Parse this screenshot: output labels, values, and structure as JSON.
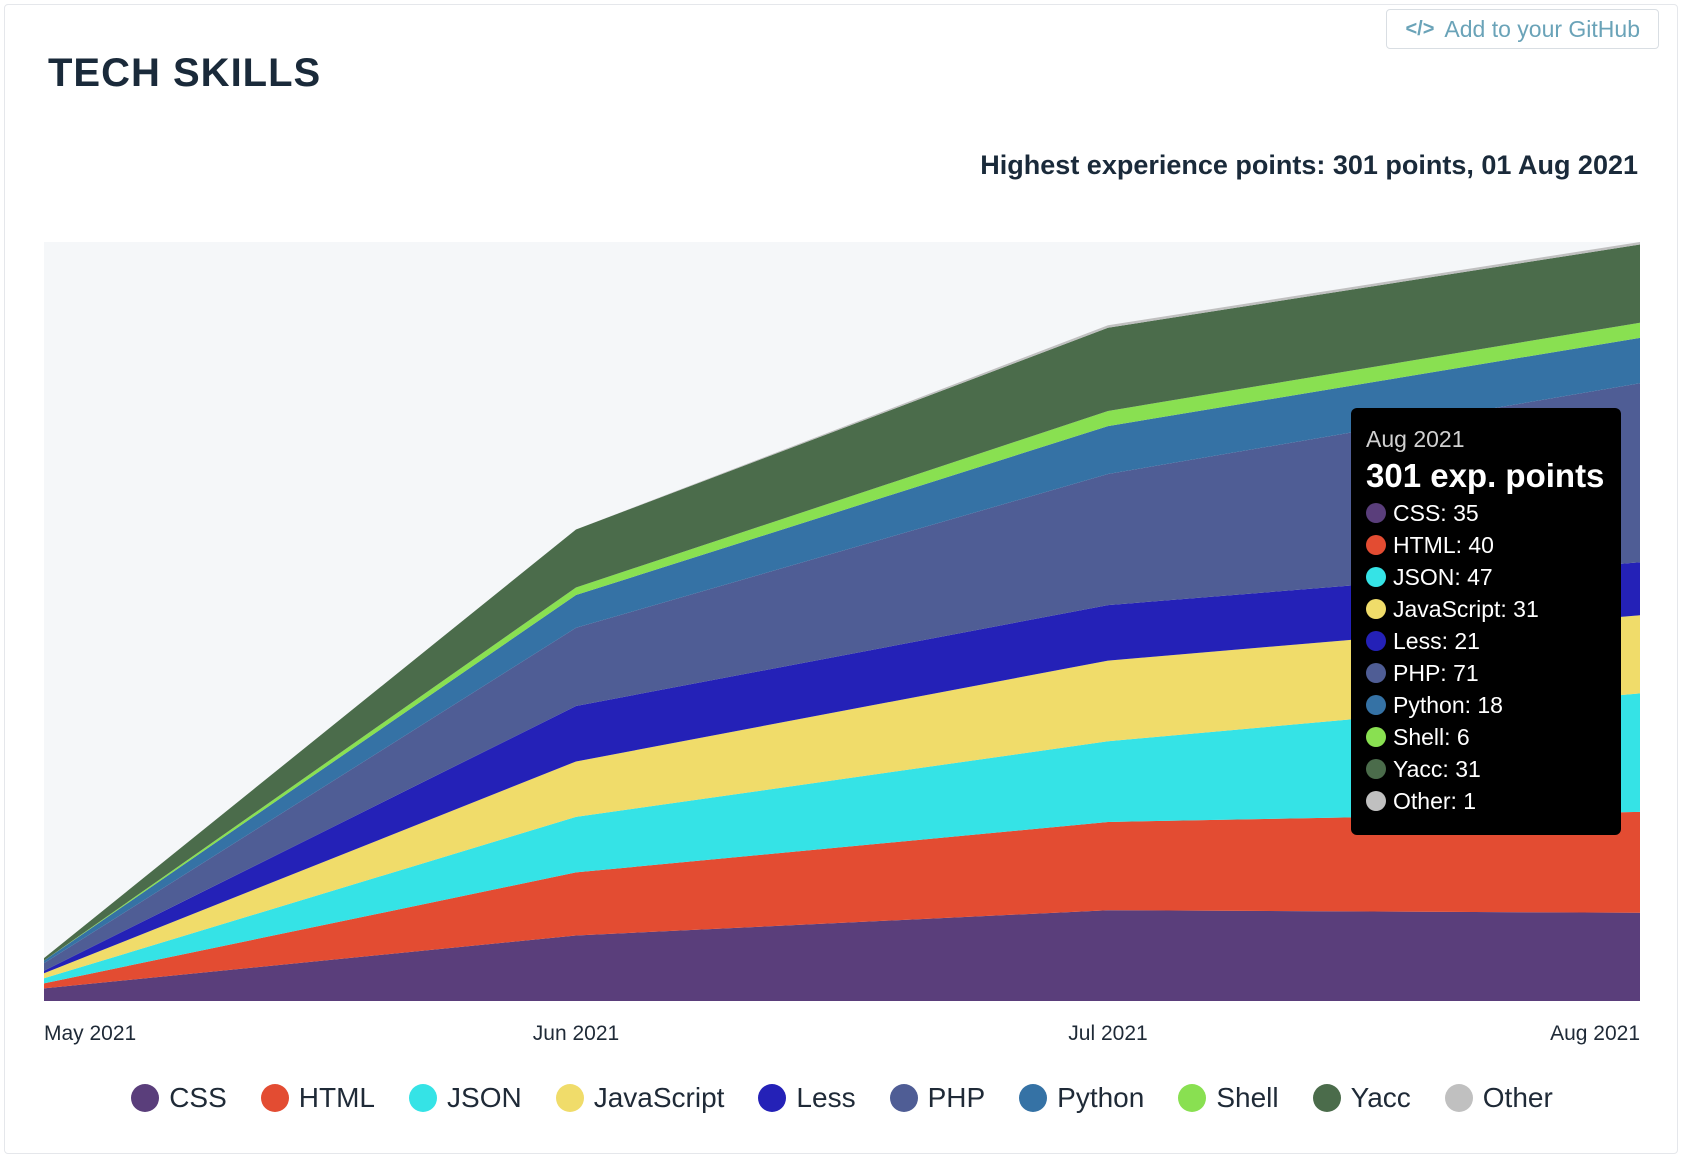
{
  "page": {
    "title": "TECH SKILLS"
  },
  "github_button": {
    "icon": "code-icon",
    "label": "Add to your GitHub"
  },
  "chart_data": {
    "type": "area",
    "stacked": true,
    "subtitle": "Highest experience points: 301 points, 01 Aug 2021",
    "categories": [
      "May 2021",
      "Jun 2021",
      "Jul 2021",
      "Aug 2021"
    ],
    "grid": false,
    "legend_position": "bottom",
    "series": [
      {
        "name": "CSS",
        "color": "#5a3e7b",
        "values": [
          5,
          26,
          36,
          35
        ]
      },
      {
        "name": "HTML",
        "color": "#e34c32",
        "values": [
          2,
          25,
          35,
          40
        ]
      },
      {
        "name": "JSON",
        "color": "#35e3e6",
        "values": [
          2,
          22,
          32,
          47
        ]
      },
      {
        "name": "JavaScript",
        "color": "#f0dc6a",
        "values": [
          2,
          22,
          32,
          31
        ]
      },
      {
        "name": "Less",
        "color": "#2421b7",
        "values": [
          1,
          22,
          22,
          21
        ]
      },
      {
        "name": "PHP",
        "color": "#4f5d95",
        "values": [
          3,
          31,
          52,
          71
        ]
      },
      {
        "name": "Python",
        "color": "#3572a5",
        "values": [
          1,
          13,
          19,
          18
        ]
      },
      {
        "name": "Shell",
        "color": "#89e051",
        "values": [
          0,
          3,
          6,
          6
        ]
      },
      {
        "name": "Yacc",
        "color": "#4b6c4b",
        "values": [
          1,
          23,
          33,
          31
        ]
      },
      {
        "name": "Other",
        "color": "#c0c0c0",
        "values": [
          0,
          0,
          1,
          1
        ]
      }
    ]
  },
  "tooltip": {
    "date": "Aug 2021",
    "total": "301 exp. points",
    "rows": [
      {
        "label": "CSS: 35",
        "color": "#5a3e7b"
      },
      {
        "label": "HTML: 40",
        "color": "#e34c32"
      },
      {
        "label": "JSON: 47",
        "color": "#35e3e6"
      },
      {
        "label": "JavaScript: 31",
        "color": "#f0dc6a"
      },
      {
        "label": "Less: 21",
        "color": "#2421b7"
      },
      {
        "label": "PHP: 71",
        "color": "#4f5d95"
      },
      {
        "label": "Python: 18",
        "color": "#3572a5"
      },
      {
        "label": "Shell: 6",
        "color": "#89e051"
      },
      {
        "label": "Yacc: 31",
        "color": "#4b6c4b"
      },
      {
        "label": "Other: 1",
        "color": "#c0c0c0"
      }
    ]
  }
}
